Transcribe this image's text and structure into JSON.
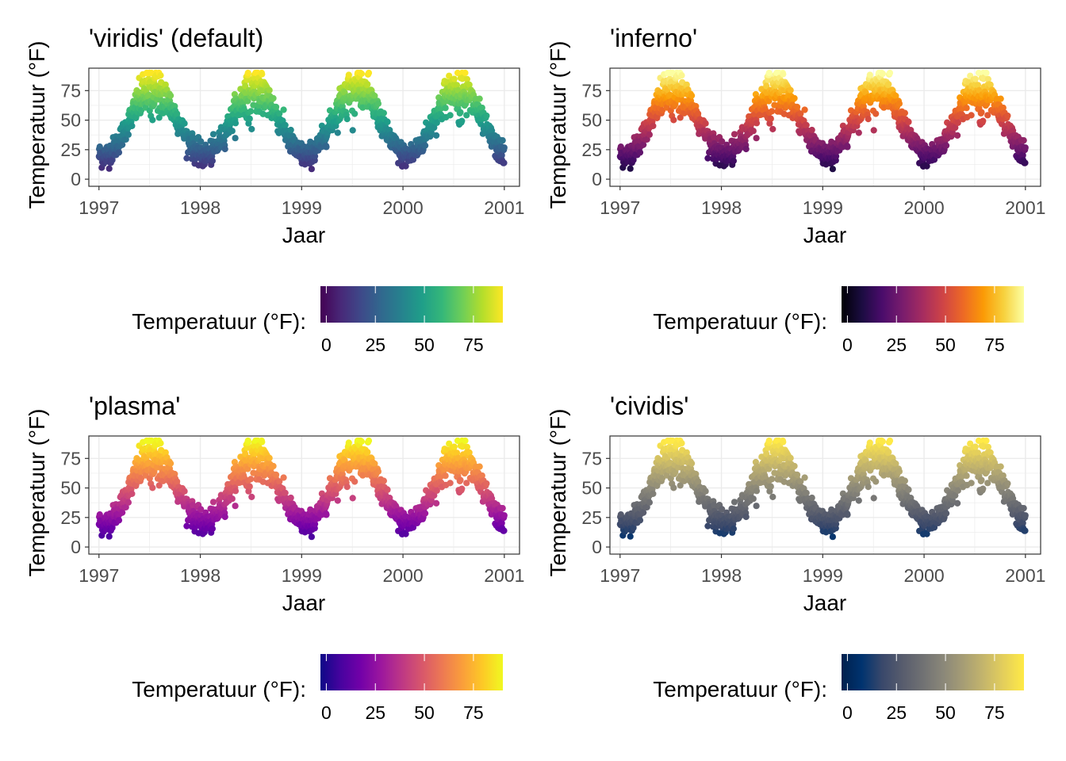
{
  "chart_data": [
    {
      "type": "scatter",
      "title": "'viridis' (default)",
      "palette": "viridis",
      "colors": [
        "#440154",
        "#482878",
        "#3e4989",
        "#31688e",
        "#26828e",
        "#1f9e89",
        "#35b779",
        "#6ece58",
        "#b5de2b",
        "#fde725"
      ],
      "xlabel": "Jaar",
      "ylabel": "Temperatuur (°F)",
      "xlim": [
        1996.9,
        2001.15
      ],
      "ylim": [
        -6,
        94
      ],
      "xticks": [
        1997,
        1998,
        1999,
        2000,
        2001
      ],
      "yticks": [
        0,
        25,
        50,
        75
      ],
      "legend": {
        "title": "Temperatuur (°F):",
        "position": "bottom",
        "range": [
          -3,
          90
        ],
        "ticks": [
          0,
          25,
          50,
          75
        ]
      },
      "grid": true,
      "series": {
        "x_start": 1997.0,
        "x_end": 2001.0,
        "y_low": 20,
        "y_high": 76,
        "y_min_shown": -3,
        "y_max_shown": 90
      }
    },
    {
      "type": "scatter",
      "title": "'inferno'",
      "palette": "inferno",
      "colors": [
        "#000004",
        "#1b0c41",
        "#4a0c6b",
        "#781c6d",
        "#a52c60",
        "#cf4446",
        "#ed6925",
        "#fb9b06",
        "#f7d13d",
        "#fcffa4"
      ],
      "xlabel": "Jaar",
      "ylabel": "Temperatuur (°F)",
      "xlim": [
        1996.9,
        2001.15
      ],
      "ylim": [
        -6,
        94
      ],
      "xticks": [
        1997,
        1998,
        1999,
        2000,
        2001
      ],
      "yticks": [
        0,
        25,
        50,
        75
      ],
      "legend": {
        "title": "Temperatuur (°F):",
        "position": "bottom",
        "range": [
          -3,
          90
        ],
        "ticks": [
          0,
          25,
          50,
          75
        ]
      },
      "grid": true,
      "series": {
        "x_start": 1997.0,
        "x_end": 2001.0,
        "y_low": 20,
        "y_high": 76,
        "y_min_shown": -3,
        "y_max_shown": 90
      }
    },
    {
      "type": "scatter",
      "title": "'plasma'",
      "palette": "plasma",
      "colors": [
        "#0d0887",
        "#47039f",
        "#7301a8",
        "#9c179e",
        "#bd3786",
        "#d8576b",
        "#ed7953",
        "#fa9e3b",
        "#fdc926",
        "#f0f921"
      ],
      "xlabel": "Jaar",
      "ylabel": "Temperatuur (°F)",
      "xlim": [
        1996.9,
        2001.15
      ],
      "ylim": [
        -6,
        94
      ],
      "xticks": [
        1997,
        1998,
        1999,
        2000,
        2001
      ],
      "yticks": [
        0,
        25,
        50,
        75
      ],
      "legend": {
        "title": "Temperatuur (°F):",
        "position": "bottom",
        "range": [
          -3,
          90
        ],
        "ticks": [
          0,
          25,
          50,
          75
        ]
      },
      "grid": true,
      "series": {
        "x_start": 1997.0,
        "x_end": 2001.0,
        "y_low": 20,
        "y_high": 76,
        "y_min_shown": -3,
        "y_max_shown": 90
      }
    },
    {
      "type": "scatter",
      "title": "'cividis'",
      "palette": "cividis",
      "colors": [
        "#00204d",
        "#00336f",
        "#39486b",
        "#575c6d",
        "#707173",
        "#8a8779",
        "#a69d75",
        "#c4b56c",
        "#e4cf5b",
        "#ffea46"
      ],
      "xlabel": "Jaar",
      "ylabel": "Temperatuur (°F)",
      "xlim": [
        1996.9,
        2001.15
      ],
      "ylim": [
        -6,
        94
      ],
      "xticks": [
        1997,
        1998,
        1999,
        2000,
        2001
      ],
      "yticks": [
        0,
        25,
        50,
        75
      ],
      "legend": {
        "title": "Temperatuur (°F):",
        "position": "bottom",
        "range": [
          -3,
          90
        ],
        "ticks": [
          0,
          25,
          50,
          75
        ]
      },
      "grid": true,
      "series": {
        "x_start": 1997.0,
        "x_end": 2001.0,
        "y_low": 20,
        "y_high": 76,
        "y_min_shown": -3,
        "y_max_shown": 90
      }
    }
  ]
}
